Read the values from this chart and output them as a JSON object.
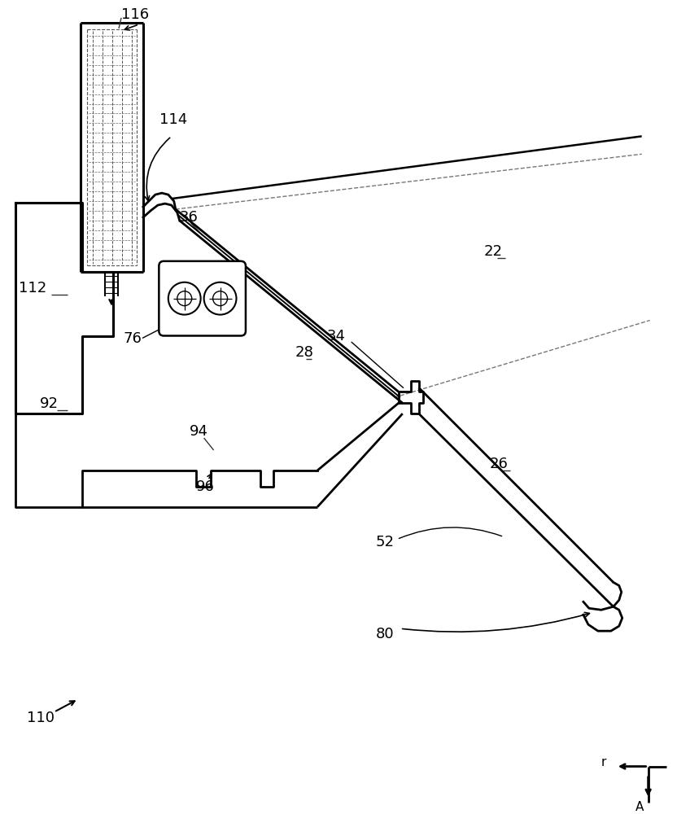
{
  "bg_color": "#ffffff",
  "lc": "#000000",
  "lw": 1.8
}
